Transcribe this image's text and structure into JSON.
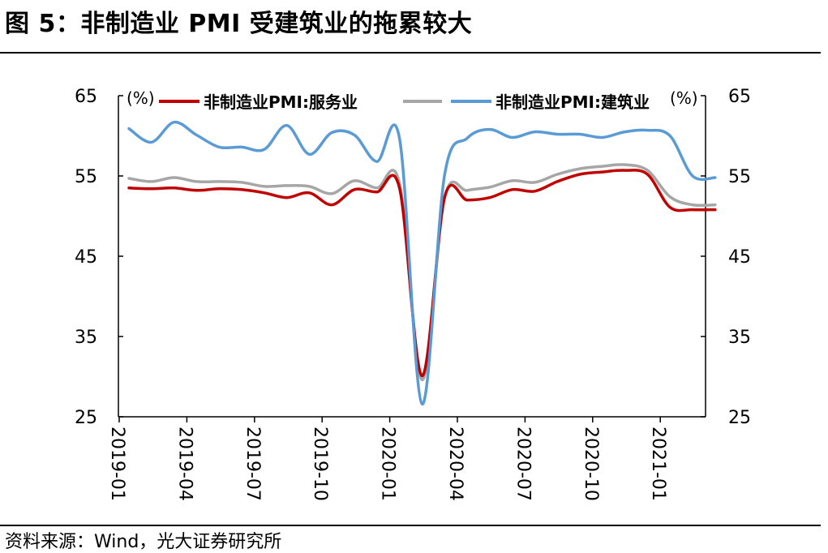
{
  "title": "图 5：非制造业 PMI 受建筑业的拖累较大",
  "source": "资料来源：Wind，光大证券研究所",
  "chart_data": {
    "type": "line",
    "title": "图 5：非制造业 PMI 受建筑业的拖累较大",
    "y_unit_left": "(%)",
    "y_unit_right": "(%)",
    "ylim": [
      25,
      65
    ],
    "yticks": [
      "65",
      "55",
      "45",
      "35",
      "25"
    ],
    "x": [
      "2019-01",
      "2019-02",
      "2019-03",
      "2019-04",
      "2019-05",
      "2019-06",
      "2019-07",
      "2019-08",
      "2019-09",
      "2019-10",
      "2019-11",
      "2019-12",
      "2020-01",
      "2020-02",
      "2020-03",
      "2020-04",
      "2020-05",
      "2020-06",
      "2020-07",
      "2020-08",
      "2020-09",
      "2020-10",
      "2020-11",
      "2020-12",
      "2021-01",
      "2021-02",
      "2021-03"
    ],
    "xtick_labels": [
      "2019-01",
      "2019-04",
      "2019-07",
      "2019-10",
      "2020-01",
      "2020-04",
      "2020-07",
      "2020-10",
      "2021-01"
    ],
    "xtick_index": [
      0,
      3,
      6,
      9,
      12,
      15,
      18,
      21,
      24
    ],
    "grid": false,
    "legend": "top",
    "series": [
      {
        "name": "非制造业PMI:服务业",
        "color": "#c00000",
        "values": [
          53.5,
          53.4,
          53.5,
          53.2,
          53.4,
          53.3,
          52.9,
          52.3,
          52.9,
          51.4,
          53.3,
          53.0,
          53.5,
          30.1,
          52.3,
          52.0,
          52.3,
          53.3,
          53.1,
          54.3,
          55.2,
          55.5,
          55.7,
          55.2,
          51.1,
          50.8,
          50.8
        ]
      },
      {
        "name": "",
        "color": "#a6a6a6",
        "values": [
          54.7,
          54.3,
          54.8,
          54.3,
          54.3,
          54.2,
          53.7,
          53.8,
          53.7,
          52.8,
          54.4,
          53.5,
          54.1,
          29.6,
          52.3,
          53.2,
          53.6,
          54.4,
          54.2,
          55.2,
          55.9,
          56.2,
          56.4,
          55.7,
          52.4,
          51.4,
          51.4
        ]
      },
      {
        "name": "非制造业PMI:建筑业",
        "color": "#5b9bd5",
        "values": [
          60.9,
          59.2,
          61.7,
          60.1,
          58.6,
          58.6,
          58.3,
          61.3,
          57.7,
          60.4,
          60.1,
          56.8,
          59.7,
          26.6,
          55.1,
          59.7,
          60.8,
          59.8,
          60.5,
          60.2,
          60.2,
          59.8,
          60.5,
          60.7,
          60.0,
          55.0,
          54.8
        ]
      }
    ]
  }
}
